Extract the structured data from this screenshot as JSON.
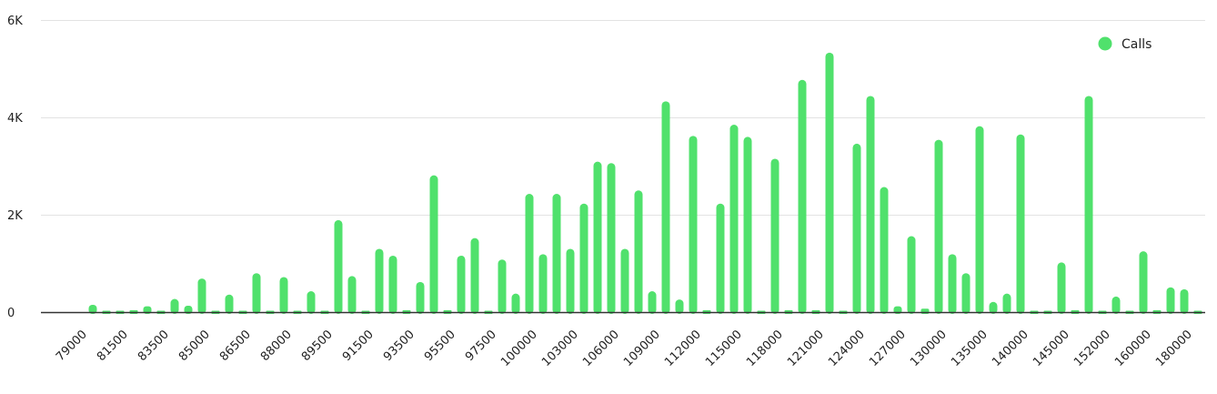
{
  "chart_data": {
    "type": "bar",
    "title": "",
    "xlabel": "",
    "ylabel": "",
    "ylim": [
      0,
      6000
    ],
    "yticks": [
      0,
      2000,
      4000,
      6000
    ],
    "ytick_labels": [
      "0",
      "2K",
      "4K",
      "6K"
    ],
    "grid": "horizontal",
    "legend_position": "top-right",
    "bar_color": "#50e16c",
    "categories": [
      "79000",
      "",
      "",
      "81500",
      "",
      "",
      "83500",
      "",
      "",
      "85000",
      "",
      "",
      "86500",
      "",
      "",
      "88000",
      "",
      "",
      "89500",
      "",
      "",
      "91500",
      "",
      "",
      "93500",
      "",
      "",
      "95500",
      "",
      "",
      "97500",
      "",
      "",
      "100000",
      "",
      "",
      "103000",
      "",
      "",
      "106000",
      "",
      "",
      "109000",
      "",
      "",
      "112000",
      "",
      "",
      "115000",
      "",
      "",
      "118000",
      "",
      "",
      "121000",
      "",
      "",
      "124000",
      "",
      "",
      "127000",
      "",
      "",
      "130000",
      "",
      "",
      "135000",
      "",
      "",
      "140000",
      "",
      "",
      "145000",
      "",
      "",
      "152000",
      "",
      "",
      "160000",
      "",
      "",
      "180000"
    ],
    "series": [
      {
        "name": "Calls",
        "values": [
          150,
          20,
          0,
          40,
          120,
          0,
          270,
          130,
          690,
          0,
          360,
          0,
          800,
          10,
          720,
          0,
          430,
          10,
          1890,
          740,
          10,
          1300,
          1160,
          40,
          620,
          2810,
          40,
          1160,
          1520,
          10,
          1080,
          380,
          2430,
          1190,
          2430,
          1300,
          2230,
          3090,
          3060,
          1300,
          2500,
          430,
          4330,
          260,
          3620,
          40,
          2230,
          3850,
          3600,
          10,
          3150,
          40,
          4770,
          40,
          5330,
          10,
          3460,
          4440,
          2570,
          120,
          1560,
          70,
          3540,
          1190,
          800,
          3820,
          210,
          380,
          3650,
          0,
          10,
          1020,
          40,
          4440,
          10,
          320,
          10,
          1250,
          40,
          510,
          470,
          10
        ]
      }
    ]
  }
}
